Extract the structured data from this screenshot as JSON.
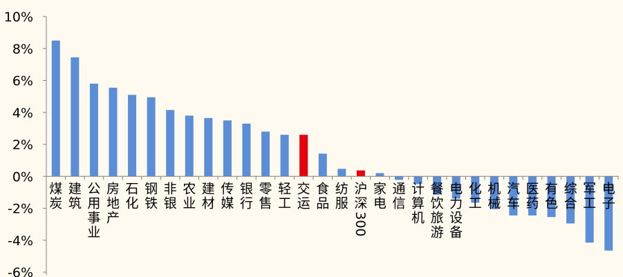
{
  "colors": {
    "background": "#FFFAF0",
    "bar": "#5B8ED6",
    "highlight": "#E8000B",
    "axis": "#808080"
  },
  "chart_data": {
    "type": "bar",
    "title": "",
    "xlabel": "",
    "ylabel": "",
    "ylim": [
      -6,
      10
    ],
    "yticks": [
      "10%",
      "8%",
      "6%",
      "4%",
      "2%",
      "0%",
      "-2%",
      "-4%",
      "-6%"
    ],
    "categories": [
      "煤炭",
      "建筑",
      "公用事业",
      "房地产",
      "石化",
      "钢铁",
      "非银",
      "农业",
      "建材",
      "传媒",
      "银行",
      "零售",
      "轻工",
      "交运",
      "食品",
      "纺服",
      "沪深300",
      "家电",
      "通信",
      "计算机",
      "餐饮旅游",
      "电力设备",
      "化工",
      "机械",
      "汽车",
      "医药",
      "有色",
      "综合",
      "军工",
      "电子"
    ],
    "values": [
      8.5,
      7.45,
      5.8,
      5.55,
      5.1,
      4.95,
      4.15,
      3.8,
      3.65,
      3.5,
      3.3,
      2.8,
      2.6,
      2.6,
      1.42,
      0.47,
      0.37,
      0.2,
      -0.22,
      -0.48,
      -1.15,
      -1.4,
      -1.65,
      -2.05,
      -2.45,
      -2.45,
      -2.55,
      -2.95,
      -4.15,
      -4.65
    ],
    "highlighted": [
      "交运",
      "沪深300"
    ],
    "grid": false,
    "legend": "none"
  }
}
